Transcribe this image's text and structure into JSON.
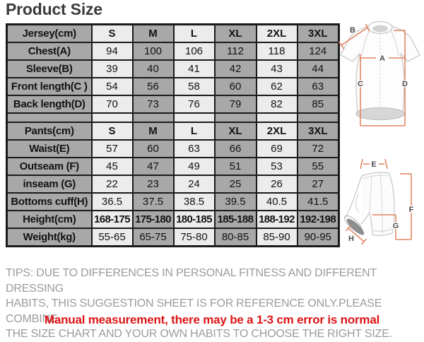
{
  "title": "Product Size",
  "size_table": {
    "jersey": {
      "header": [
        "Jersey(cm)",
        "S",
        "M",
        "L",
        "XL",
        "2XL",
        "3XL"
      ],
      "rows": [
        {
          "label": "Chest(A)",
          "values": [
            "94",
            "100",
            "106",
            "112",
            "118",
            "124"
          ]
        },
        {
          "label": "Sleeve(B)",
          "values": [
            "39",
            "40",
            "41",
            "42",
            "43",
            "44"
          ]
        },
        {
          "label": "Front length(C )",
          "values": [
            "54",
            "56",
            "58",
            "60",
            "62",
            "63"
          ]
        },
        {
          "label": "Back length(D)",
          "values": [
            "70",
            "73",
            "76",
            "79",
            "82",
            "85"
          ]
        }
      ]
    },
    "pants": {
      "header": [
        "Pants(cm)",
        "S",
        "M",
        "L",
        "XL",
        "2XL",
        "3XL"
      ],
      "rows": [
        {
          "label": "Waist(E)",
          "values": [
            "57",
            "60",
            "63",
            "66",
            "69",
            "72"
          ]
        },
        {
          "label": "Outseam (F)",
          "values": [
            "45",
            "47",
            "49",
            "51",
            "53",
            "55"
          ]
        },
        {
          "label": "inseam (G)",
          "values": [
            "22",
            "23",
            "24",
            "25",
            "26",
            "27"
          ]
        },
        {
          "label": "Bottoms cuff(H)",
          "values": [
            "36.5",
            "37.5",
            "38.5",
            "39.5",
            "40.5",
            "41.5"
          ]
        },
        {
          "label": "Height(cm)",
          "values": [
            "168-175",
            "175-180",
            "180-185",
            "185-188",
            "188-192",
            "192-198"
          ]
        },
        {
          "label": "Weight(kg)",
          "values": [
            "55-65",
            "65-75",
            "75-80",
            "80-85",
            "85-90",
            "90-95"
          ]
        }
      ]
    }
  },
  "tips": {
    "lines": [
      "TIPS: DUE TO DIFFERENCES IN PERSONAL FITNESS AND DIFFERENT DRESSING",
      "HABITS, THIS SUGGESTION SHEET IS FOR REFERENCE ONLY.PLEASE COMBINE",
      "THE SIZE CHART AND YOUR OWN HABITS TO CHOOSE THE RIGHT SIZE."
    ],
    "note": "Manual measurement, there may be a 1-3 cm error is normal"
  },
  "diagrams": {
    "jersey_labels": {
      "A": "A",
      "B": "B",
      "C": "C",
      "D": "D"
    },
    "pants_labels": {
      "E": "E",
      "F": "F",
      "G": "G",
      "H": "H"
    }
  },
  "colors": {
    "cell_dark": "#a8a8a8",
    "cell_light": "#ececec",
    "table_border": "#1b1b1b",
    "tips_text": "#9b9b9b",
    "note_text": "#dd1414",
    "measure_line": "#e28565",
    "garment_outline": "#c9c9c9"
  }
}
